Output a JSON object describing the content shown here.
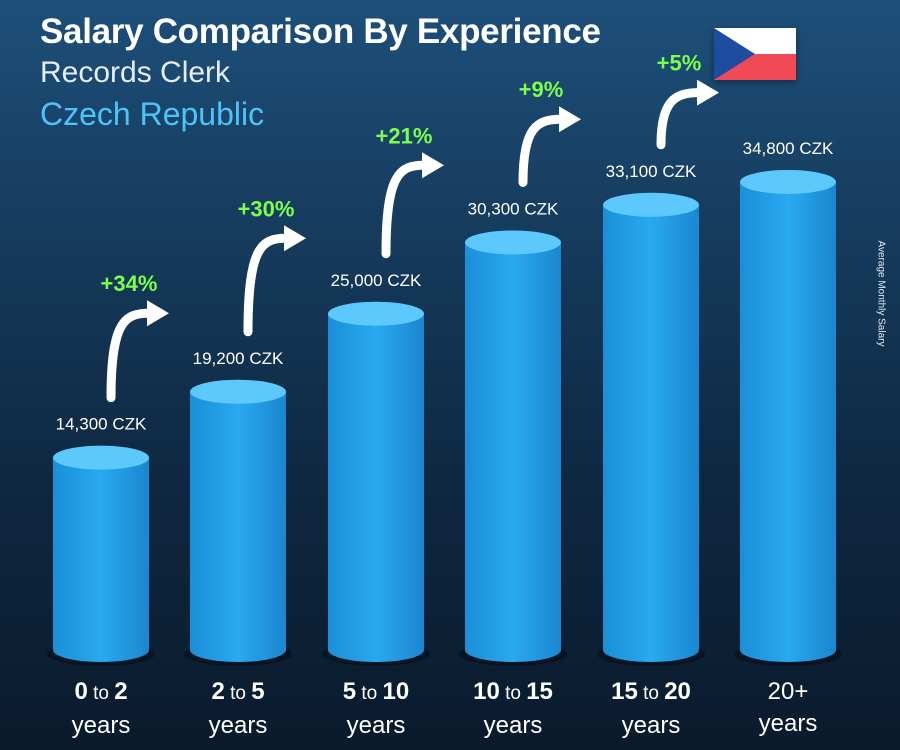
{
  "header": {
    "title": "Salary Comparison By Experience",
    "job": "Records Clerk",
    "country": "Czech Republic",
    "side_label": "Average Monthly Salary"
  },
  "flag": {
    "colors": {
      "white": "#ffffff",
      "red": "#f04b55",
      "blue": "#1e4da0"
    }
  },
  "colors": {
    "bar": "#29a9f0",
    "bar_top": "#5cc8fb",
    "increase": "#7cff4a",
    "arrow": "#ffffff"
  },
  "chart_data": {
    "type": "bar",
    "title": "Salary Comparison By Experience",
    "categories": [
      "0 to 2 years",
      "2 to 5 years",
      "5 to 10 years",
      "10 to 15 years",
      "15 to 20 years",
      "20+ years"
    ],
    "category_parts": [
      {
        "a": "0",
        "to": "to",
        "b": "2",
        "unit": "years"
      },
      {
        "a": "2",
        "to": "to",
        "b": "5",
        "unit": "years"
      },
      {
        "a": "5",
        "to": "to",
        "b": "10",
        "unit": "years"
      },
      {
        "a": "10",
        "to": "to",
        "b": "15",
        "unit": "years"
      },
      {
        "a": "15",
        "to": "to",
        "b": "20",
        "unit": "years"
      },
      {
        "a": "20+",
        "to": "",
        "b": "",
        "unit": "years"
      }
    ],
    "values": [
      14300,
      19200,
      25000,
      30300,
      33100,
      34800
    ],
    "value_labels": [
      "14,300 CZK",
      "19,200 CZK",
      "25,000 CZK",
      "30,300 CZK",
      "33,100 CZK",
      "34,800 CZK"
    ],
    "increases": [
      "+34%",
      "+30%",
      "+21%",
      "+9%",
      "+5%"
    ],
    "ylabel": "Average Monthly Salary",
    "currency": "CZK"
  }
}
